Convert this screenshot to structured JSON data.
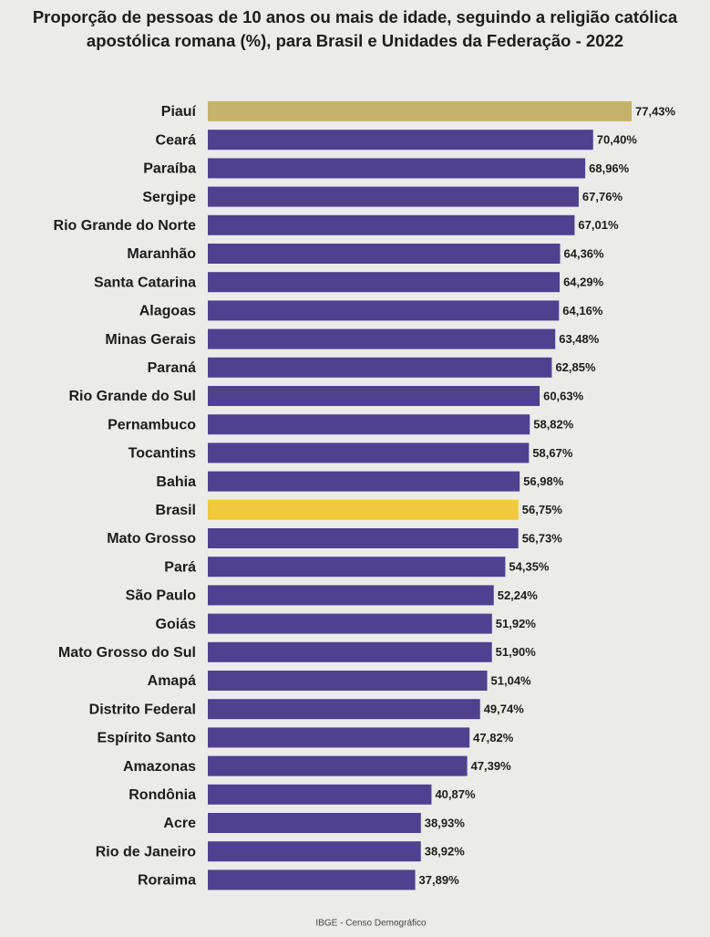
{
  "chart_data": {
    "type": "bar",
    "orientation": "horizontal",
    "title": "Proporção de pessoas de 10 anos ou mais de idade, seguindo a religião católica apostólica romana (%), para Brasil e Unidades da Federação - 2022",
    "categories": [
      "Piauí",
      "Ceará",
      "Paraíba",
      "Sergipe",
      "Rio Grande do Norte",
      "Maranhão",
      "Santa Catarina",
      "Alagoas",
      "Minas Gerais",
      "Paraná",
      "Rio Grande do Sul",
      "Pernambuco",
      "Tocantins",
      "Bahia",
      "Brasil",
      "Mato Grosso",
      "Pará",
      "São Paulo",
      "Goiás",
      "Mato Grosso do Sul",
      "Amapá",
      "Distrito Federal",
      "Espírito Santo",
      "Amazonas",
      "Rondônia",
      "Acre",
      "Rio de Janeiro",
      "Roraima"
    ],
    "values": [
      77.43,
      70.4,
      68.96,
      67.76,
      67.01,
      64.36,
      64.29,
      64.16,
      63.48,
      62.85,
      60.63,
      58.82,
      58.67,
      56.98,
      56.75,
      56.73,
      54.35,
      52.24,
      51.92,
      51.9,
      51.04,
      49.74,
      47.82,
      47.39,
      40.87,
      38.93,
      38.92,
      37.89
    ],
    "value_labels": [
      "77,43%",
      "70,40%",
      "68,96%",
      "67,76%",
      "67,01%",
      "64,36%",
      "64,29%",
      "64,16%",
      "63,48%",
      "62,85%",
      "60,63%",
      "58,82%",
      "58,67%",
      "56,98%",
      "56,75%",
      "56,73%",
      "54,35%",
      "52,24%",
      "51,92%",
      "51,90%",
      "51,04%",
      "49,74%",
      "47,82%",
      "47,39%",
      "40,87%",
      "38,93%",
      "38,92%",
      "37,89%"
    ],
    "colors": [
      "#c6b36b",
      "#4f4190",
      "#4f4190",
      "#4f4190",
      "#4f4190",
      "#4f4190",
      "#4f4190",
      "#4f4190",
      "#4f4190",
      "#4f4190",
      "#4f4190",
      "#4f4190",
      "#4f4190",
      "#4f4190",
      "#f0c93c",
      "#4f4190",
      "#4f4190",
      "#4f4190",
      "#4f4190",
      "#4f4190",
      "#4f4190",
      "#4f4190",
      "#4f4190",
      "#4f4190",
      "#4f4190",
      "#4f4190",
      "#4f4190",
      "#4f4190"
    ],
    "source": "IBGE - Censo Demográfico"
  }
}
